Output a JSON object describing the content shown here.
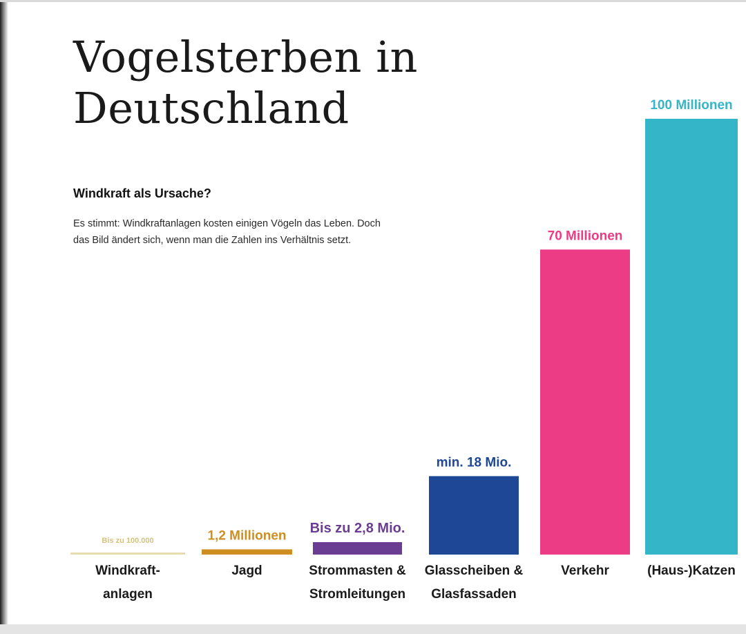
{
  "header": {
    "title_line_1": "Vogelsterben in",
    "title_line_2": "Deutschland",
    "subtitle": "Windkraft als Ursache?",
    "description_line_1": "Es stimmt: Windkraftanlagen kosten einigen Vögeln das Leben. Doch",
    "description_line_2": "das Bild ändert sich, wenn man die Zahlen ins Verhältnis setzt."
  },
  "chart_data": {
    "type": "bar",
    "title": "Vogelsterben in Deutschland",
    "subtitle": "Windkraft als Ursache?",
    "unit": "Vögel",
    "categories": [
      [
        "Windkraft-",
        "anlagen"
      ],
      [
        "Jagd"
      ],
      [
        "Strommasten &",
        "Stromleitungen"
      ],
      [
        "Glasscheiben &",
        "Glasfassaden"
      ],
      [
        "Verkehr"
      ],
      [
        "(Haus-)Katzen"
      ]
    ],
    "values": [
      100000,
      1200000,
      2800000,
      18000000,
      70000000,
      100000000
    ],
    "value_labels": [
      "Bis zu 100.000",
      "1,2 Millionen",
      "Bis zu 2,8 Mio.",
      "min. 18 Mio.",
      "70 Millionen",
      "100 Millionen"
    ],
    "colors": [
      "#e6dcae",
      "#cf8e22",
      "#6a3d92",
      "#1e4795",
      "#ec3c86",
      "#35b5c8"
    ],
    "label_colors": [
      "#d4c27e",
      "#cf8e22",
      "#6a3d92",
      "#1e4795",
      "#ec3c86",
      "#35b5c8"
    ],
    "ylim": [
      0,
      100000000
    ],
    "grid": false,
    "legend": "none"
  }
}
